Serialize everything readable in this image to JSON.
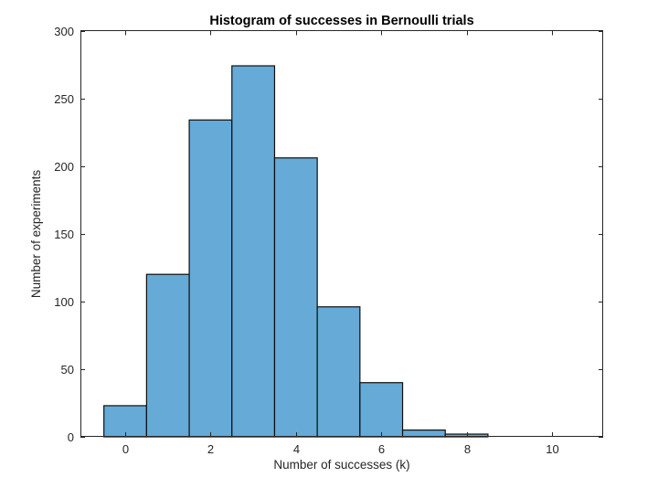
{
  "chart_data": {
    "type": "bar",
    "title": "Histogram of successes in Bernoulli trials",
    "xlabel": "Number of successes (k)",
    "ylabel": "Number of experiments",
    "categories": [
      0,
      1,
      2,
      3,
      4,
      5,
      6,
      7,
      8,
      9,
      10
    ],
    "values": [
      23,
      120,
      234,
      274,
      206,
      96,
      40,
      5,
      2,
      0,
      0
    ],
    "total_experiments": 1000,
    "bar_width": 1,
    "xlim": [
      -1.05,
      11.2
    ],
    "ylim": [
      0,
      300
    ],
    "xticks": [
      0,
      2,
      4,
      6,
      8,
      10
    ],
    "yticks": [
      0,
      50,
      100,
      150,
      200,
      250,
      300
    ],
    "grid": false,
    "box": true,
    "tick_direction": "in",
    "legend_position": "none",
    "colors": {
      "bar_fill": "#66AAD7",
      "bar_edge": "#0F0F0F",
      "axis": "#262626",
      "tick_text": "#262626",
      "title_text": "#000000",
      "background": "#FFFFFF"
    }
  }
}
